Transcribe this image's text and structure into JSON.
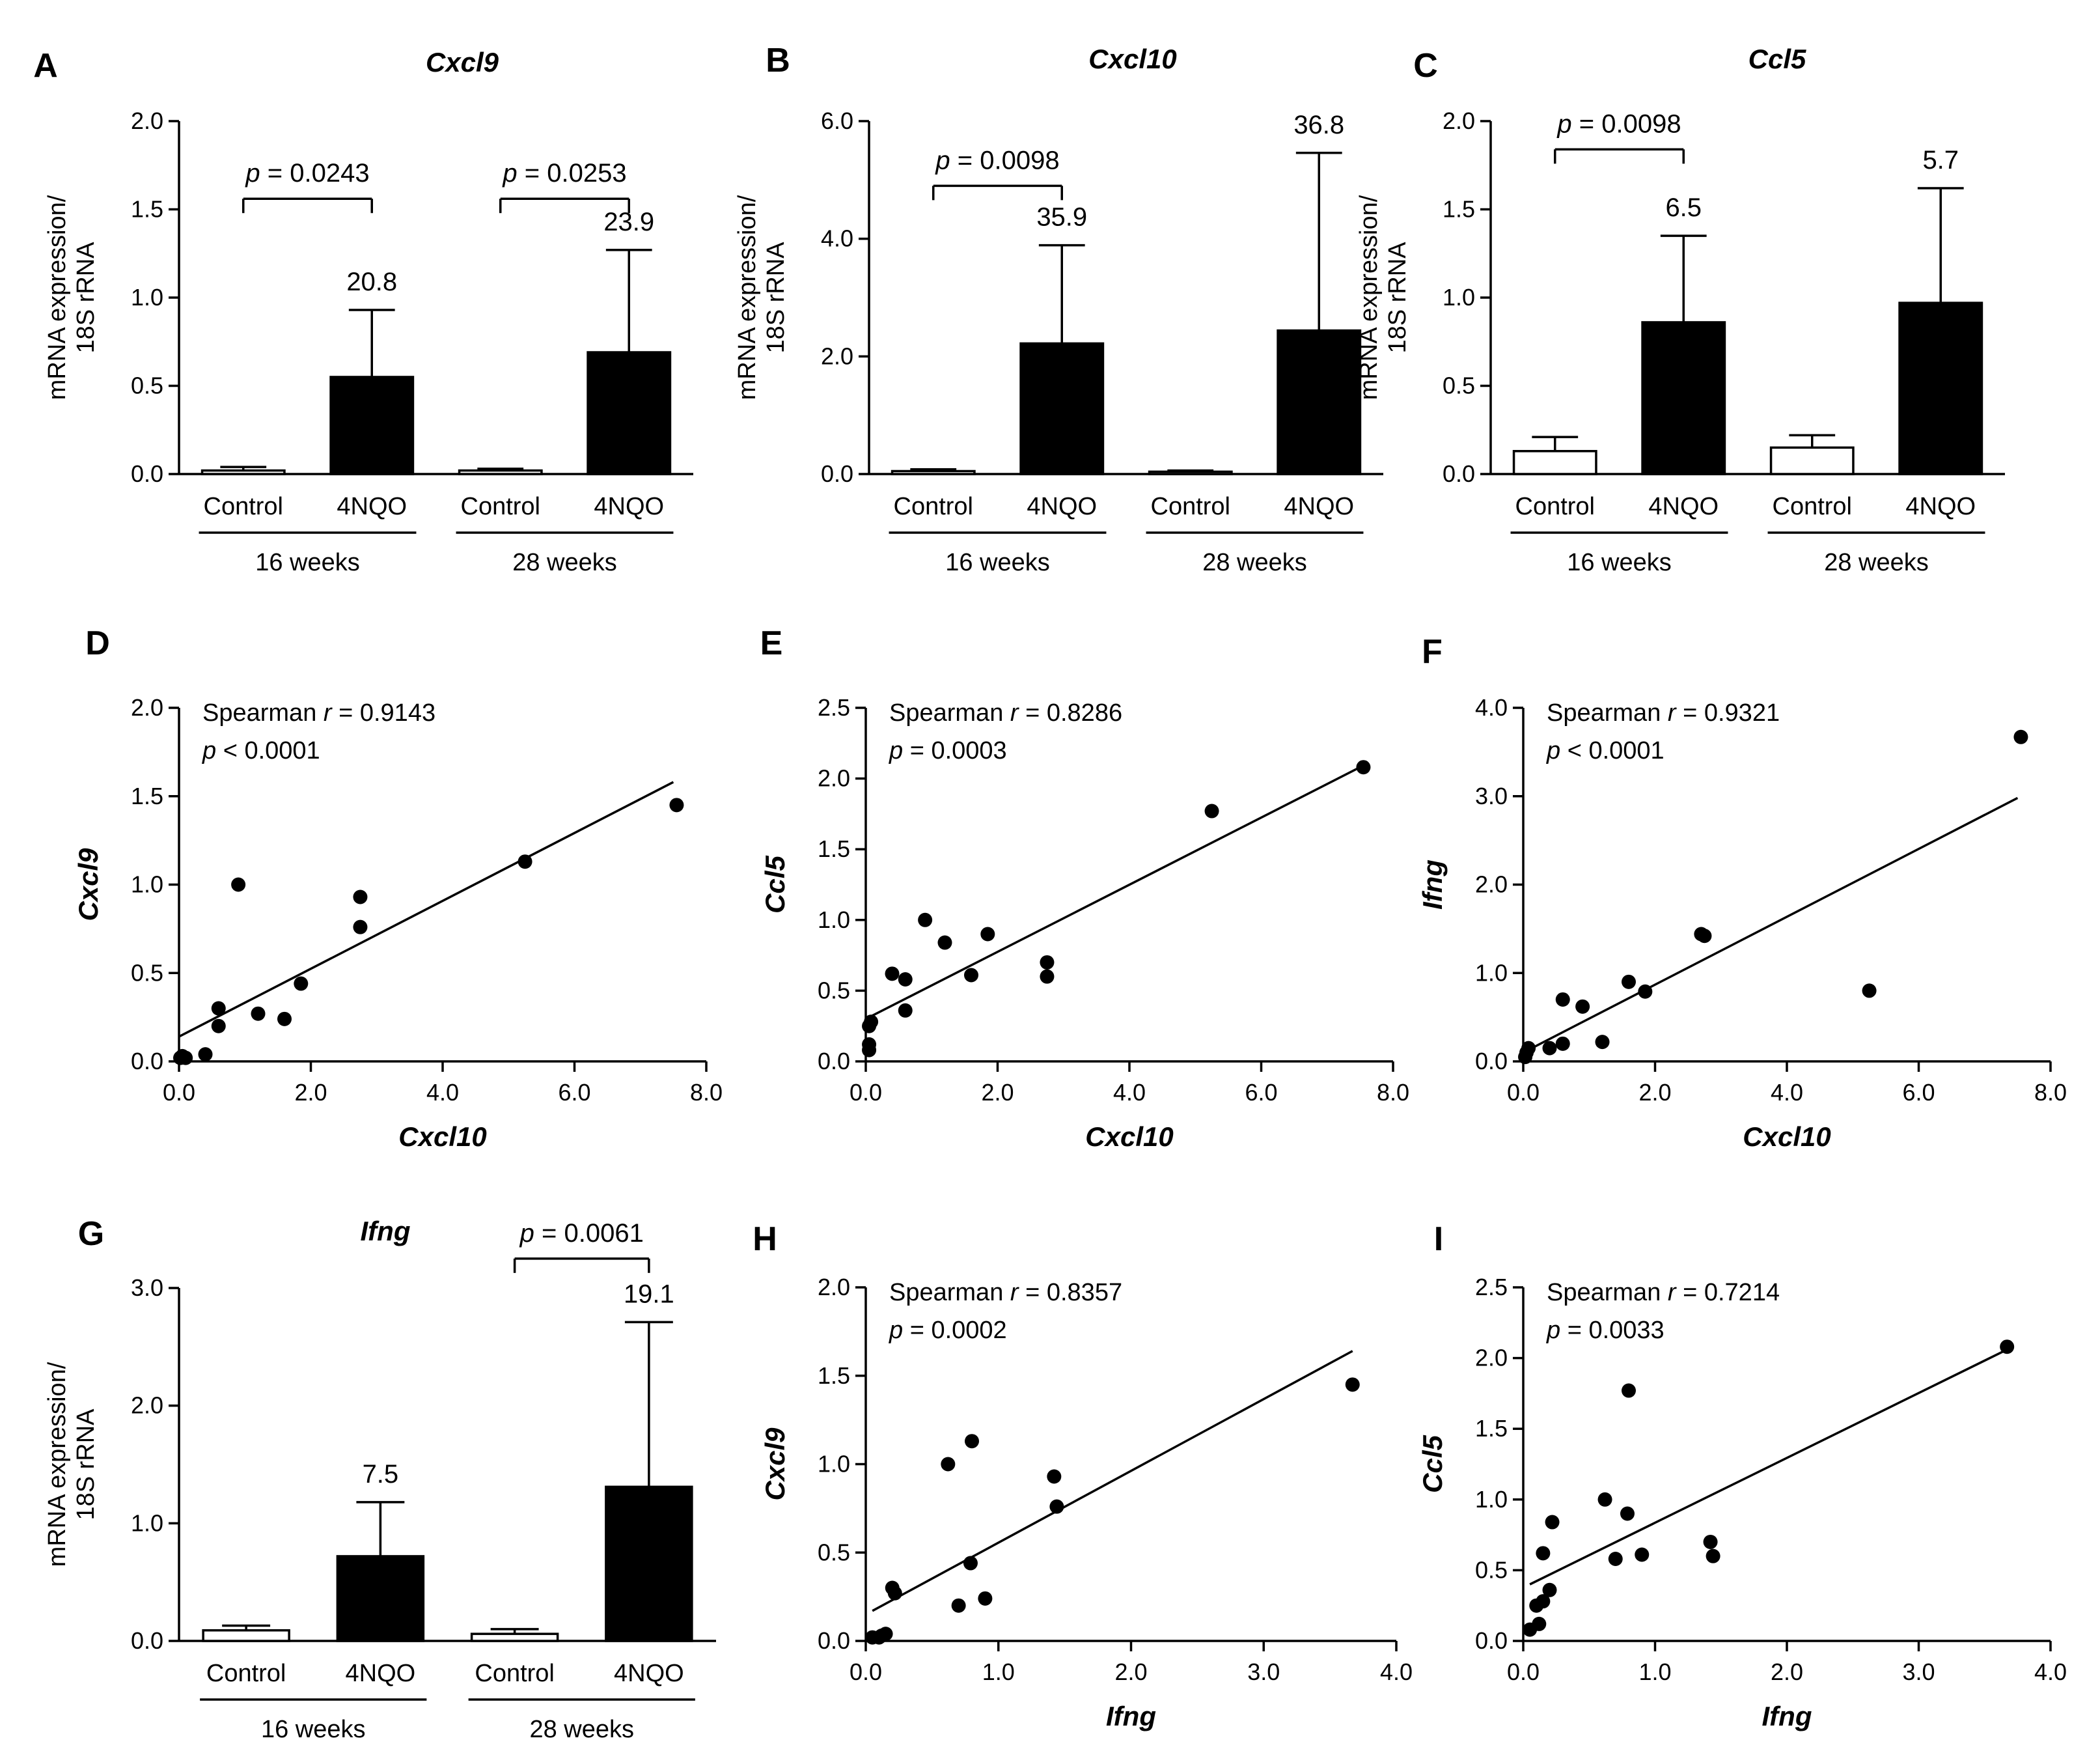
{
  "chart_data": [
    {
      "id": "A",
      "panel": "A",
      "type": "bar",
      "title": "Cxcl9",
      "ylabel_lines": [
        "mRNA expression/",
        "18S rRNA"
      ],
      "yticks": [
        "0.0",
        "0.5",
        "1.0",
        "1.5",
        "2.0"
      ],
      "ylim": [
        0,
        2.0
      ],
      "categories": [
        "Control",
        "4NQO",
        "Control",
        "4NQO"
      ],
      "groups": [
        "16 weeks",
        "28 weeks"
      ],
      "values": [
        0.02,
        0.55,
        0.02,
        0.69
      ],
      "errors": [
        0.02,
        0.38,
        0.01,
        0.58
      ],
      "fills": [
        "white",
        "black",
        "white",
        "black"
      ],
      "bar_labels": [
        "",
        "20.8",
        "",
        "23.9"
      ],
      "significance": [
        {
          "text": "= 0.0243",
          "p": "p",
          "from": 0,
          "to": 1,
          "y": 1.56
        },
        {
          "text": "= 0.0253",
          "p": "p",
          "from": 2,
          "to": 3,
          "y": 1.56
        }
      ]
    },
    {
      "id": "B",
      "panel": "B",
      "type": "bar",
      "title": "Cxcl10",
      "ylabel_lines": [
        "mRNA expression/",
        "18S rRNA"
      ],
      "yticks": [
        "0.0",
        "2.0",
        "4.0",
        "6.0"
      ],
      "ylim": [
        0,
        6.0
      ],
      "categories": [
        "Control",
        "4NQO",
        "Control",
        "4NQO"
      ],
      "groups": [
        "16 weeks",
        "28 weeks"
      ],
      "values": [
        0.05,
        2.22,
        0.04,
        2.44
      ],
      "errors": [
        0.03,
        1.67,
        0.02,
        3.02
      ],
      "fills": [
        "white",
        "black",
        "white",
        "black"
      ],
      "bar_labels": [
        "",
        "35.9",
        "",
        "36.8"
      ],
      "significance": [
        {
          "text": "= 0.0098",
          "p": "p",
          "from": 0,
          "to": 1,
          "y": 4.9
        }
      ]
    },
    {
      "id": "C",
      "panel": "C",
      "type": "bar",
      "title": "Ccl5",
      "ylabel_lines": [
        "mRNA expression/",
        "18S rRNA"
      ],
      "yticks": [
        "0.0",
        "0.5",
        "1.0",
        "1.5",
        "2.0"
      ],
      "ylim": [
        0,
        2.0
      ],
      "categories": [
        "Control",
        "4NQO",
        "Control",
        "4NQO"
      ],
      "groups": [
        "16 weeks",
        "28 weeks"
      ],
      "values": [
        0.13,
        0.86,
        0.15,
        0.97
      ],
      "errors": [
        0.08,
        0.49,
        0.07,
        0.65
      ],
      "fills": [
        "white",
        "black",
        "white",
        "black"
      ],
      "bar_labels": [
        "",
        "6.5",
        "",
        "5.7"
      ],
      "significance": [
        {
          "text": "= 0.0098",
          "p": "p",
          "from": 0,
          "to": 1,
          "y": 1.84
        }
      ]
    },
    {
      "id": "D",
      "panel": "D",
      "type": "scatter",
      "xlabel": "Cxcl10",
      "ylabel": "Cxcl9",
      "xticks": [
        "0.0",
        "2.0",
        "4.0",
        "6.0",
        "8.0"
      ],
      "xlim": [
        0,
        8.0
      ],
      "yticks": [
        "0.0",
        "0.5",
        "1.0",
        "1.5",
        "2.0"
      ],
      "ylim": [
        0,
        2.0
      ],
      "stat_lines": [
        {
          "pre": "Spearman ",
          "ital": "r",
          "post": " = 0.9143"
        },
        {
          "pre": "",
          "ital": "p",
          "post": " < 0.0001"
        }
      ],
      "points": [
        [
          0.02,
          0.02
        ],
        [
          0.05,
          0.03
        ],
        [
          0.1,
          0.02
        ],
        [
          0.4,
          0.04
        ],
        [
          0.6,
          0.2
        ],
        [
          0.6,
          0.3
        ],
        [
          0.9,
          1.0
        ],
        [
          1.2,
          0.27
        ],
        [
          1.6,
          0.24
        ],
        [
          1.85,
          0.44
        ],
        [
          2.75,
          0.76
        ],
        [
          2.75,
          0.93
        ],
        [
          5.25,
          1.13
        ],
        [
          7.55,
          1.45
        ]
      ],
      "fit": [
        [
          0.0,
          0.14
        ],
        [
          7.5,
          1.58
        ]
      ]
    },
    {
      "id": "E",
      "panel": "E",
      "type": "scatter",
      "xlabel": "Cxcl10",
      "ylabel": "Ccl5",
      "xticks": [
        "0.0",
        "2.0",
        "4.0",
        "6.0",
        "8.0"
      ],
      "xlim": [
        0,
        8.0
      ],
      "yticks": [
        "0.0",
        "0.5",
        "1.0",
        "1.5",
        "2.0",
        "2.5"
      ],
      "ylim": [
        0,
        2.5
      ],
      "stat_lines": [
        {
          "pre": "Spearman ",
          "ital": "r",
          "post": " = 0.8286"
        },
        {
          "pre": "",
          "ital": "p",
          "post": " = 0.0003"
        }
      ],
      "points": [
        [
          0.05,
          0.08
        ],
        [
          0.05,
          0.12
        ],
        [
          0.05,
          0.25
        ],
        [
          0.08,
          0.28
        ],
        [
          0.4,
          0.62
        ],
        [
          0.6,
          0.58
        ],
        [
          0.6,
          0.36
        ],
        [
          0.9,
          1.0
        ],
        [
          1.2,
          0.84
        ],
        [
          1.6,
          0.61
        ],
        [
          1.85,
          0.9
        ],
        [
          2.75,
          0.6
        ],
        [
          2.75,
          0.7
        ],
        [
          5.25,
          1.77
        ],
        [
          7.55,
          2.08
        ]
      ],
      "fit": [
        [
          0.0,
          0.3
        ],
        [
          7.5,
          2.08
        ]
      ]
    },
    {
      "id": "F",
      "panel": "F",
      "type": "scatter",
      "xlabel": "Cxcl10",
      "ylabel": "Ifng",
      "xticks": [
        "0.0",
        "2.0",
        "4.0",
        "6.0",
        "8.0"
      ],
      "xlim": [
        0,
        8.0
      ],
      "yticks": [
        "0.0",
        "1.0",
        "2.0",
        "3.0",
        "4.0"
      ],
      "ylim": [
        0,
        4.0
      ],
      "stat_lines": [
        {
          "pre": "Spearman ",
          "ital": "r",
          "post": " = 0.9321"
        },
        {
          "pre": "",
          "ital": "p",
          "post": " < 0.0001"
        }
      ],
      "points": [
        [
          0.03,
          0.05
        ],
        [
          0.05,
          0.1
        ],
        [
          0.08,
          0.15
        ],
        [
          0.4,
          0.15
        ],
        [
          0.6,
          0.7
        ],
        [
          0.6,
          0.2
        ],
        [
          0.9,
          0.62
        ],
        [
          1.2,
          0.22
        ],
        [
          1.6,
          0.9
        ],
        [
          1.85,
          0.79
        ],
        [
          2.7,
          1.44
        ],
        [
          2.75,
          1.42
        ],
        [
          5.25,
          0.8
        ],
        [
          7.55,
          3.67
        ]
      ],
      "fit": [
        [
          0.0,
          0.1
        ],
        [
          7.5,
          2.98
        ]
      ]
    },
    {
      "id": "G",
      "panel": "G",
      "type": "bar",
      "title": "Ifng",
      "ylabel_lines": [
        "mRNA expression/",
        "18S rRNA"
      ],
      "yticks": [
        "0.0",
        "1.0",
        "2.0",
        "3.0"
      ],
      "ylim": [
        0,
        3.0
      ],
      "categories": [
        "Control",
        "4NQO",
        "Control",
        "4NQO"
      ],
      "groups": [
        "16 weeks",
        "28 weeks"
      ],
      "values": [
        0.09,
        0.72,
        0.06,
        1.31
      ],
      "errors": [
        0.04,
        0.46,
        0.04,
        1.4
      ],
      "fills": [
        "white",
        "black",
        "white",
        "black"
      ],
      "bar_labels": [
        "",
        "7.5",
        "",
        "19.1"
      ],
      "significance": [
        {
          "text": "= 0.0061",
          "p": "p",
          "from": 2,
          "to": 3,
          "y": 3.25
        }
      ]
    },
    {
      "id": "H",
      "panel": "H",
      "type": "scatter",
      "xlabel": "Ifng",
      "ylabel": "Cxcl9",
      "xticks": [
        "0.0",
        "1.0",
        "2.0",
        "3.0",
        "4.0"
      ],
      "xlim": [
        0,
        4.0
      ],
      "yticks": [
        "0.0",
        "0.5",
        "1.0",
        "1.5",
        "2.0"
      ],
      "ylim": [
        0,
        2.0
      ],
      "stat_lines": [
        {
          "pre": "Spearman ",
          "ital": "r",
          "post": " = 0.8357"
        },
        {
          "pre": "",
          "ital": "p",
          "post": " = 0.0002"
        }
      ],
      "points": [
        [
          0.05,
          0.02
        ],
        [
          0.1,
          0.02
        ],
        [
          0.12,
          0.03
        ],
        [
          0.15,
          0.04
        ],
        [
          0.2,
          0.3
        ],
        [
          0.22,
          0.27
        ],
        [
          0.62,
          1.0
        ],
        [
          0.7,
          0.2
        ],
        [
          0.79,
          0.44
        ],
        [
          0.8,
          1.13
        ],
        [
          0.9,
          0.24
        ],
        [
          1.42,
          0.93
        ],
        [
          1.44,
          0.76
        ],
        [
          3.67,
          1.45
        ]
      ],
      "fit": [
        [
          0.05,
          0.17
        ],
        [
          3.67,
          1.64
        ]
      ]
    },
    {
      "id": "I",
      "panel": "I",
      "type": "scatter",
      "xlabel": "Ifng",
      "ylabel": "Ccl5",
      "xticks": [
        "0.0",
        "1.0",
        "2.0",
        "3.0",
        "4.0"
      ],
      "xlim": [
        0,
        4.0
      ],
      "yticks": [
        "0.0",
        "0.5",
        "1.0",
        "1.5",
        "2.0",
        "2.5"
      ],
      "ylim": [
        0,
        2.5
      ],
      "stat_lines": [
        {
          "pre": "Spearman ",
          "ital": "r",
          "post": " = 0.7214"
        },
        {
          "pre": "",
          "ital": "p",
          "post": " = 0.0033"
        }
      ],
      "points": [
        [
          0.05,
          0.08
        ],
        [
          0.1,
          0.25
        ],
        [
          0.12,
          0.12
        ],
        [
          0.15,
          0.62
        ],
        [
          0.15,
          0.28
        ],
        [
          0.2,
          0.36
        ],
        [
          0.22,
          0.84
        ],
        [
          0.62,
          1.0
        ],
        [
          0.7,
          0.58
        ],
        [
          0.79,
          0.9
        ],
        [
          0.8,
          1.77
        ],
        [
          0.9,
          0.61
        ],
        [
          1.42,
          0.7
        ],
        [
          1.44,
          0.6
        ],
        [
          3.67,
          2.08
        ]
      ],
      "fit": [
        [
          0.05,
          0.4
        ],
        [
          3.67,
          2.06
        ]
      ]
    }
  ]
}
